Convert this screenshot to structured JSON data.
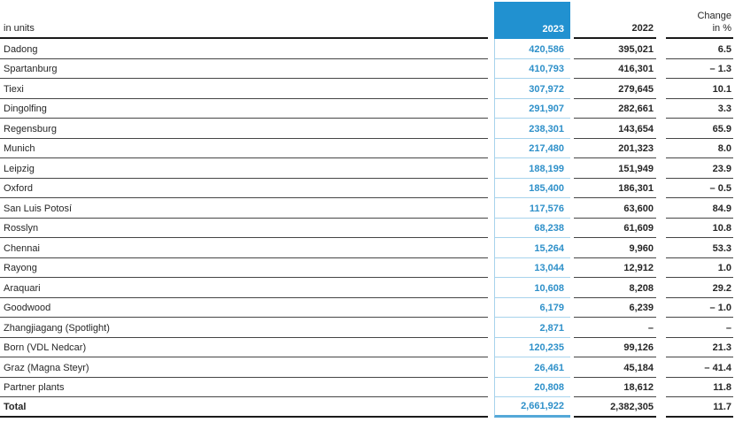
{
  "table": {
    "unit_label": "in units",
    "col_2023": "2023",
    "col_2022": "2022",
    "col_change_line1": "Change",
    "col_change_line2": "in %",
    "colors": {
      "accent_blue": "#2191d0",
      "number_blue": "#2e90c9",
      "light_blue_line": "#a7d3ec",
      "total_blue_line": "#54a8d8",
      "text_dark": "#262626"
    },
    "rows": [
      {
        "label": "Dadong",
        "y2023": "420,586",
        "y2022": "395,021",
        "change": "6.5"
      },
      {
        "label": "Spartanburg",
        "y2023": "410,793",
        "y2022": "416,301",
        "change": "– 1.3"
      },
      {
        "label": "Tiexi",
        "y2023": "307,972",
        "y2022": "279,645",
        "change": "10.1"
      },
      {
        "label": "Dingolfing",
        "y2023": "291,907",
        "y2022": "282,661",
        "change": "3.3"
      },
      {
        "label": "Regensburg",
        "y2023": "238,301",
        "y2022": "143,654",
        "change": "65.9"
      },
      {
        "label": "Munich",
        "y2023": "217,480",
        "y2022": "201,323",
        "change": "8.0"
      },
      {
        "label": "Leipzig",
        "y2023": "188,199",
        "y2022": "151,949",
        "change": "23.9"
      },
      {
        "label": "Oxford",
        "y2023": "185,400",
        "y2022": "186,301",
        "change": "– 0.5"
      },
      {
        "label": "San Luis Potosí",
        "y2023": "117,576",
        "y2022": "63,600",
        "change": "84.9"
      },
      {
        "label": "Rosslyn",
        "y2023": "68,238",
        "y2022": "61,609",
        "change": "10.8"
      },
      {
        "label": "Chennai",
        "y2023": "15,264",
        "y2022": "9,960",
        "change": "53.3"
      },
      {
        "label": "Rayong",
        "y2023": "13,044",
        "y2022": "12,912",
        "change": "1.0"
      },
      {
        "label": "Araquari",
        "y2023": "10,608",
        "y2022": "8,208",
        "change": "29.2"
      },
      {
        "label": "Goodwood",
        "y2023": "6,179",
        "y2022": "6,239",
        "change": "– 1.0"
      },
      {
        "label": "Zhangjiagang (Spotlight)",
        "y2023": "2,871",
        "y2022": "–",
        "change": "–"
      },
      {
        "label": "Born (VDL Nedcar)",
        "y2023": "120,235",
        "y2022": "99,126",
        "change": "21.3"
      },
      {
        "label": "Graz (Magna Steyr)",
        "y2023": "26,461",
        "y2022": "45,184",
        "change": "– 41.4"
      },
      {
        "label": "Partner plants",
        "y2023": "20,808",
        "y2022": "18,612",
        "change": "11.8"
      },
      {
        "label": "Total",
        "y2023": "2,661,922",
        "y2022": "2,382,305",
        "change": "11.7",
        "total": true
      }
    ]
  }
}
